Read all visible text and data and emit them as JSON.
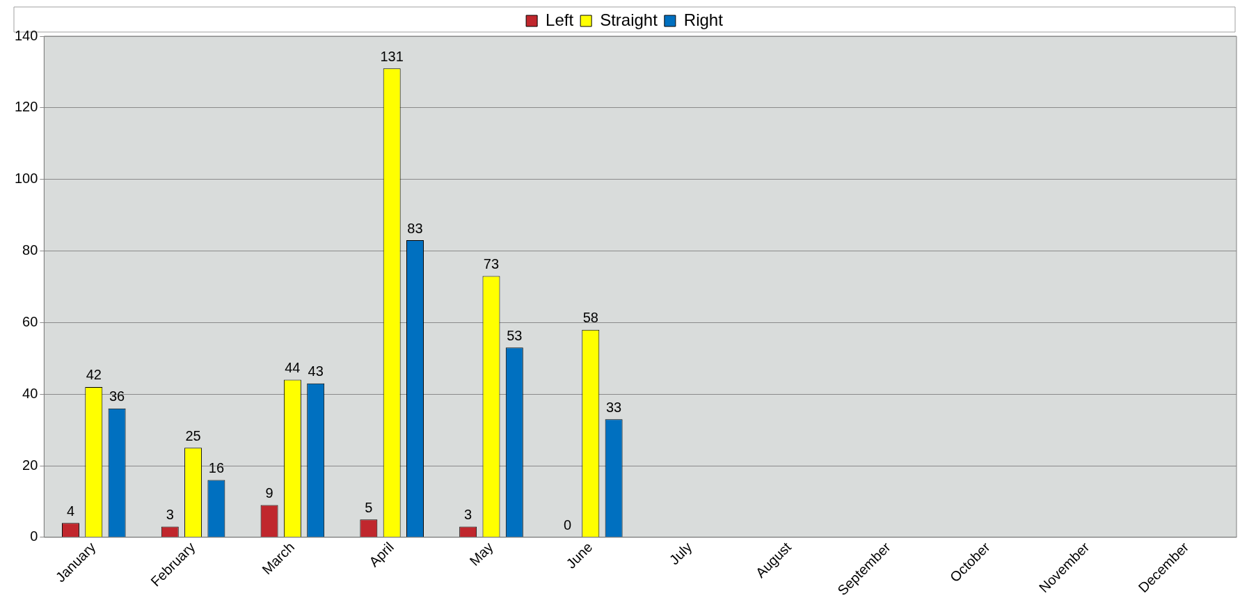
{
  "chart_data": {
    "type": "bar",
    "categories": [
      "January",
      "February",
      "March",
      "April",
      "May",
      "June",
      "July",
      "August",
      "September",
      "October",
      "November",
      "December"
    ],
    "series": [
      {
        "name": "Left",
        "color": "#c0272d",
        "values": [
          4,
          3,
          9,
          5,
          3,
          0,
          null,
          null,
          null,
          null,
          null,
          null
        ]
      },
      {
        "name": "Straight",
        "color": "#ffff00",
        "values": [
          42,
          25,
          44,
          131,
          73,
          58,
          null,
          null,
          null,
          null,
          null,
          null
        ]
      },
      {
        "name": "Right",
        "color": "#0070c0",
        "values": [
          36,
          16,
          43,
          83,
          53,
          33,
          null,
          null,
          null,
          null,
          null,
          null
        ]
      }
    ],
    "ylim": [
      0,
      140
    ],
    "yticks": [
      0,
      20,
      40,
      60,
      80,
      100,
      120,
      140
    ],
    "grid": "y",
    "legend": "top",
    "data_labels": true
  }
}
